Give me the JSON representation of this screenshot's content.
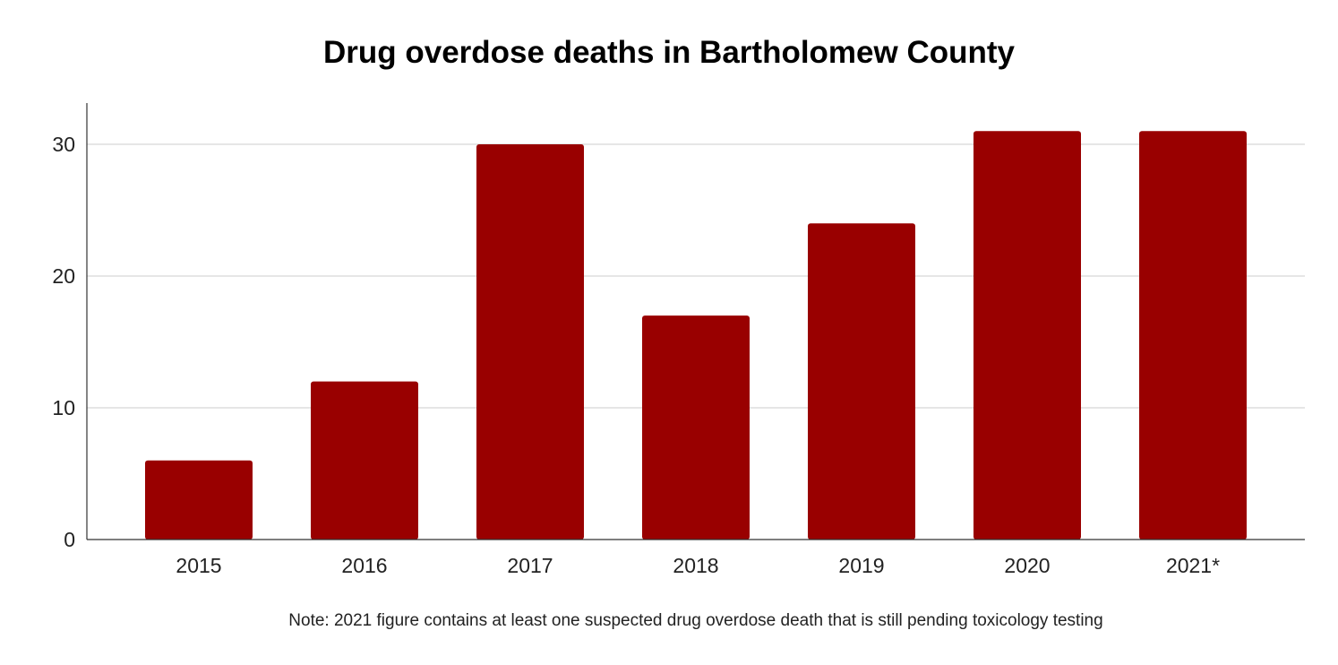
{
  "chart_data": {
    "type": "bar",
    "title": "Drug overdose deaths in Bartholomew County",
    "categories": [
      "2015",
      "2016",
      "2017",
      "2018",
      "2019",
      "2020",
      "2021*"
    ],
    "values": [
      6,
      12,
      30,
      17,
      24,
      31,
      31
    ],
    "xlabel": "",
    "ylabel": "",
    "ylim": [
      0,
      33
    ],
    "yticks": [
      0,
      10,
      20,
      30
    ],
    "grid": true,
    "bar_color": "#990000",
    "note": "Note: 2021 figure contains at least one suspected drug overdose death that is still pending toxicology testing"
  }
}
